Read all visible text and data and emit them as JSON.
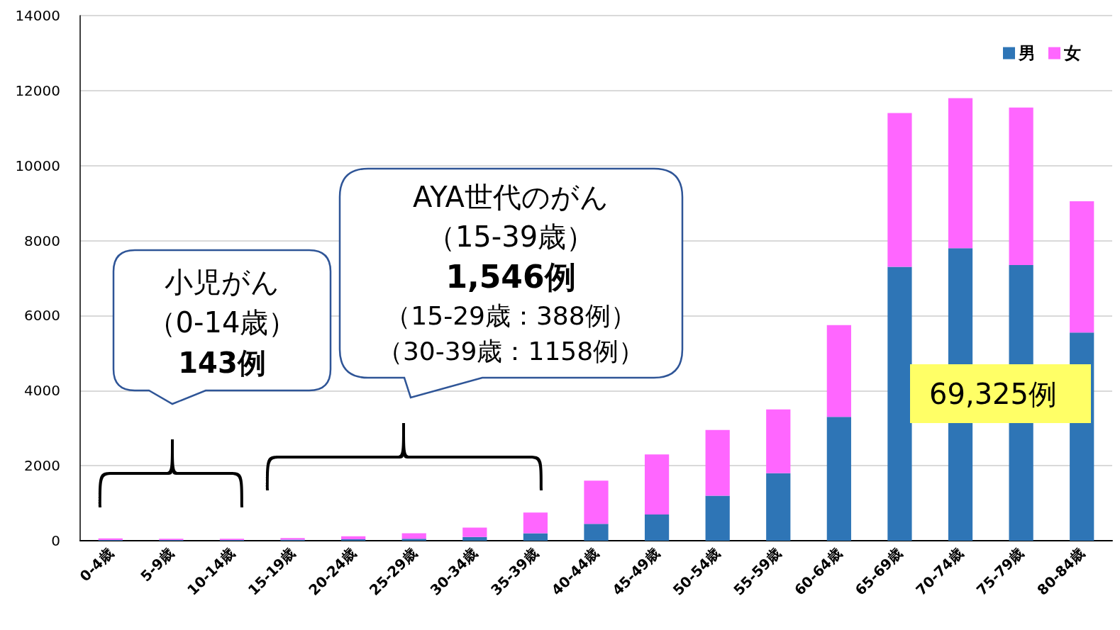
{
  "chart_data": {
    "type": "bar",
    "stacked": true,
    "categories": [
      "0-4歳",
      "5-9歳",
      "10-14歳",
      "15-19歳",
      "20-24歳",
      "25-29歳",
      "30-34歳",
      "35-39歳",
      "40-44歳",
      "45-49歳",
      "50-54歳",
      "55-59歳",
      "60-64歳",
      "65-69歳",
      "70-74歳",
      "75-79歳",
      "80-84歳"
    ],
    "series": [
      {
        "name": "男",
        "color": "#2e75b6",
        "values": [
          20,
          20,
          20,
          30,
          40,
          50,
          100,
          200,
          450,
          700,
          1200,
          1800,
          3300,
          7300,
          7800,
          7350,
          5550
        ]
      },
      {
        "name": "女",
        "color": "#ff66ff",
        "values": [
          40,
          30,
          30,
          40,
          80,
          150,
          250,
          550,
          1150,
          1600,
          1750,
          1700,
          2450,
          4100,
          4000,
          4200,
          3500
        ]
      }
    ],
    "ylim": [
      0,
      14000
    ],
    "yticks": [
      0,
      2000,
      4000,
      6000,
      8000,
      10000,
      12000,
      14000
    ],
    "grid": "y",
    "legend": "top right",
    "annotations": [
      "小児がん",
      "（0-14歳）",
      "143例",
      "AYA世代のがん",
      "（15-39歳）",
      "1,546例",
      "（15-29歳：388例）",
      "（30-39歳：1158例）",
      "69,325例"
    ]
  }
}
